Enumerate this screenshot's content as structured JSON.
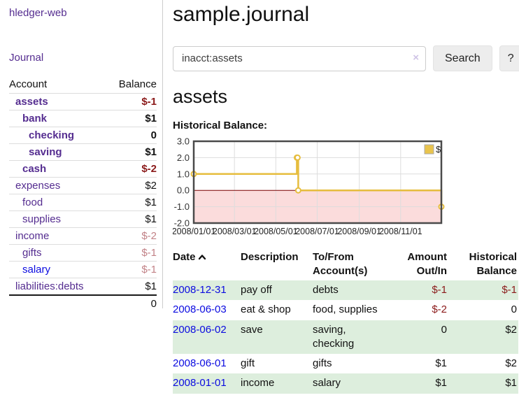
{
  "app": {
    "brand": "hledger-web",
    "nav_journal": "Journal"
  },
  "sidebar": {
    "col_account": "Account",
    "col_balance": "Balance",
    "accounts": [
      {
        "name": "assets",
        "balance": "$-1"
      },
      {
        "name": "bank",
        "balance": "$1"
      },
      {
        "name": "checking",
        "balance": "0"
      },
      {
        "name": "saving",
        "balance": "$1"
      },
      {
        "name": "cash",
        "balance": "$-2"
      },
      {
        "name": "expenses",
        "balance": "$2"
      },
      {
        "name": "food",
        "balance": "$1"
      },
      {
        "name": "supplies",
        "balance": "$1"
      },
      {
        "name": "income",
        "balance": "$-2"
      },
      {
        "name": "gifts",
        "balance": "$-1"
      },
      {
        "name": "salary",
        "balance": "$-1"
      },
      {
        "name": "liabilities:debts",
        "balance": "$1"
      }
    ],
    "total": "0"
  },
  "header": {
    "title": "sample.journal"
  },
  "search": {
    "value": "inacct:assets",
    "clear_icon": "×",
    "button_label": "Search",
    "help_label": "?"
  },
  "account_page": {
    "heading": "assets",
    "chart_label": "Historical Balance:"
  },
  "chart_data": {
    "type": "line",
    "title": "Historical Balance",
    "step": true,
    "x_start": "2008-01-01",
    "x_range_days": [
      0,
      365
    ],
    "ylim": [
      -2,
      3
    ],
    "yticks": [
      {
        "v": 3,
        "label": "3.0"
      },
      {
        "v": 2,
        "label": "2.0"
      },
      {
        "v": 1,
        "label": "1.0"
      },
      {
        "v": 0,
        "label": "0.0"
      },
      {
        "v": -1,
        "label": "-1.0"
      },
      {
        "v": -2,
        "label": "-2.0"
      }
    ],
    "xticks": [
      {
        "day": 0,
        "label": "2008/01/01"
      },
      {
        "day": 60,
        "label": "2008/03/01"
      },
      {
        "day": 121,
        "label": "2008/05/01"
      },
      {
        "day": 182,
        "label": "2008/07/01"
      },
      {
        "day": 244,
        "label": "2008/09/01"
      },
      {
        "day": 305,
        "label": "2008/11/01"
      }
    ],
    "series": [
      {
        "name": "$",
        "color": "#e6bd3e",
        "points": [
          [
            "2008-01-01",
            1
          ],
          [
            "2008-06-01",
            2
          ],
          [
            "2008-06-02",
            2
          ],
          [
            "2008-06-03",
            0
          ],
          [
            "2008-12-31",
            -1
          ]
        ]
      }
    ],
    "negative_region_color": "#fbdcdc",
    "zero_line_color": "#7a0000",
    "grid_color": "#dddddd",
    "border_color": "#4a4a4a",
    "legend": {
      "label": "$",
      "swatch": "#e9c44d"
    }
  },
  "register": {
    "col_date": "Date",
    "col_description": "Description",
    "col_accounts": "To/From Account(s)",
    "col_amount": "Amount Out/In",
    "col_balance": "Historical Balance",
    "rows": [
      {
        "date": "2008-12-31",
        "description": "pay off",
        "accounts": "debts",
        "amount": "$-1",
        "balance": "$-1"
      },
      {
        "date": "2008-06-03",
        "description": "eat & shop",
        "accounts": "food, supplies",
        "amount": "$-2",
        "balance": "0"
      },
      {
        "date": "2008-06-02",
        "description": "save",
        "accounts": "saving, checking",
        "amount": "0",
        "balance": "$2"
      },
      {
        "date": "2008-06-01",
        "description": "gift",
        "accounts": "gifts",
        "amount": "$1",
        "balance": "$2"
      },
      {
        "date": "2008-01-01",
        "description": "income",
        "accounts": "salary",
        "amount": "$1",
        "balance": "$1"
      }
    ]
  },
  "colors": {
    "link_purple": "#552d90",
    "link_blue": "#0b0be0",
    "negative_bold": "#8b1a1a",
    "negative_soft": "#c28287",
    "row_stripe_green": "#ddeedd",
    "chart_line_gold": "#e6bd3e"
  }
}
